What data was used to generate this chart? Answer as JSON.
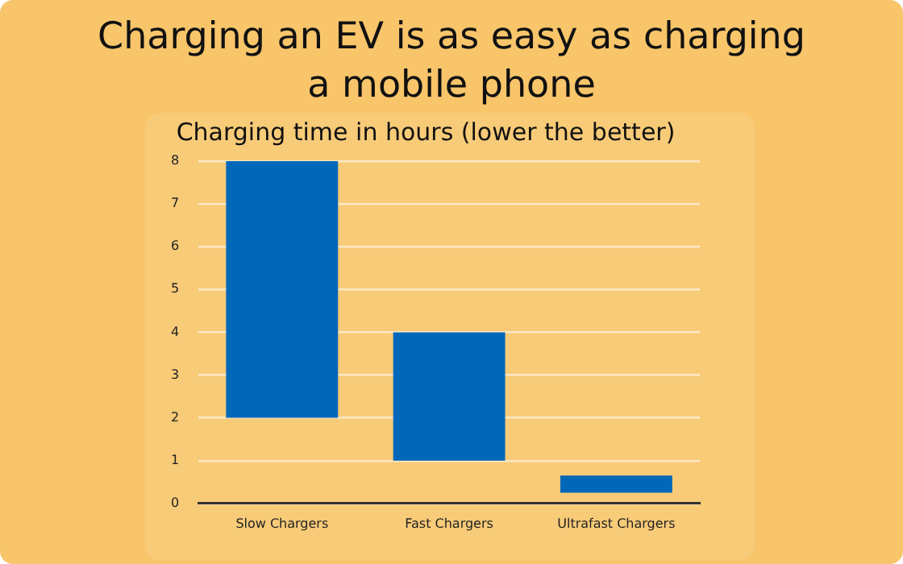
{
  "chart_data": {
    "type": "bar",
    "title": "Charging an EV is as easy as charging a mobile phone",
    "subtitle": "Charging time in hours (lower the better)",
    "categories": [
      "Slow Chargers",
      "Fast Chargers",
      "Ultrafast Chargers"
    ],
    "values": [
      6,
      3,
      0.4
    ],
    "base": [
      2,
      1,
      0.25
    ],
    "color": "#0067b9",
    "ylim": [
      0,
      8
    ],
    "yticks": [
      0,
      1,
      2,
      3,
      4,
      5,
      6,
      7,
      8
    ],
    "grid": "y",
    "legend": false
  }
}
